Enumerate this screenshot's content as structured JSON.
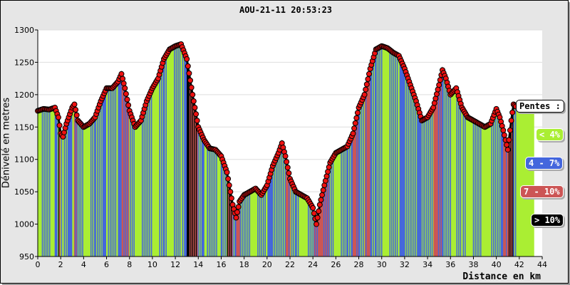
{
  "chart_data": {
    "type": "area",
    "title": "AOU-21-11 20:53:23",
    "xlabel": "Distance en km",
    "ylabel": "Dénivelé en metres",
    "xlim": [
      0,
      44
    ],
    "ylim": [
      950,
      1300
    ],
    "xticks": [
      "0",
      "2",
      "4",
      "6",
      "8",
      "10",
      "12",
      "14",
      "16",
      "18",
      "20",
      "22",
      "24",
      "26",
      "28",
      "30",
      "32",
      "34",
      "36",
      "38",
      "40",
      "42",
      "44"
    ],
    "yticks": [
      "950",
      "1000",
      "1050",
      "1100",
      "1150",
      "1200",
      "1250",
      "1300"
    ],
    "grid": true,
    "x": [
      0,
      0.5,
      1,
      1.5,
      1.8,
      2,
      2.2,
      2.5,
      3,
      3.2,
      3.5,
      4,
      4.5,
      5,
      5.5,
      6,
      6.5,
      7,
      7.3,
      7.6,
      8,
      8.5,
      9,
      9.5,
      10,
      10.5,
      11,
      11.5,
      12,
      12.5,
      13,
      13.5,
      14,
      14.5,
      15,
      15.5,
      16,
      16.5,
      17,
      17.3,
      17.6,
      18,
      18.5,
      19,
      19.5,
      20,
      20.5,
      21,
      21.3,
      21.6,
      22,
      22.5,
      23,
      23.5,
      24,
      24.3,
      24.6,
      25,
      25.5,
      26,
      26.5,
      27,
      27.5,
      28,
      28.5,
      29,
      29.5,
      30,
      30.5,
      31,
      31.5,
      32,
      32.5,
      33,
      33.5,
      34,
      34.5,
      35,
      35.3,
      35.6,
      36,
      36.5,
      37,
      37.5,
      38,
      38.5,
      39,
      39.5,
      40,
      40.3,
      40.6,
      41,
      41.3,
      41.5,
      41.8
    ],
    "y": [
      1175,
      1178,
      1177,
      1180,
      1165,
      1140,
      1135,
      1155,
      1180,
      1185,
      1160,
      1150,
      1155,
      1165,
      1190,
      1210,
      1210,
      1220,
      1232,
      1210,
      1175,
      1150,
      1160,
      1190,
      1210,
      1225,
      1255,
      1270,
      1275,
      1278,
      1255,
      1200,
      1150,
      1130,
      1117,
      1115,
      1105,
      1080,
      1030,
      1010,
      1035,
      1045,
      1050,
      1055,
      1045,
      1060,
      1090,
      1110,
      1125,
      1105,
      1070,
      1050,
      1045,
      1040,
      1025,
      1000,
      1030,
      1060,
      1095,
      1110,
      1115,
      1120,
      1140,
      1180,
      1200,
      1240,
      1270,
      1275,
      1272,
      1265,
      1260,
      1240,
      1215,
      1190,
      1160,
      1165,
      1180,
      1215,
      1238,
      1225,
      1200,
      1210,
      1180,
      1165,
      1160,
      1155,
      1150,
      1155,
      1178,
      1165,
      1145,
      1115,
      1160,
      1185,
      1180
    ],
    "fill_end_km": 43.3,
    "legend": {
      "title": "Pentes :",
      "placement": "right",
      "entries": [
        {
          "label": "< 4%",
          "color": "#aaee33"
        },
        {
          "label": "4 - 7%",
          "color": "#4466dd"
        },
        {
          "label": "7 - 10%",
          "color": "#cc5555"
        },
        {
          "label": "> 10%",
          "color": "#000000"
        }
      ]
    },
    "marker_color": "#ee1111"
  }
}
